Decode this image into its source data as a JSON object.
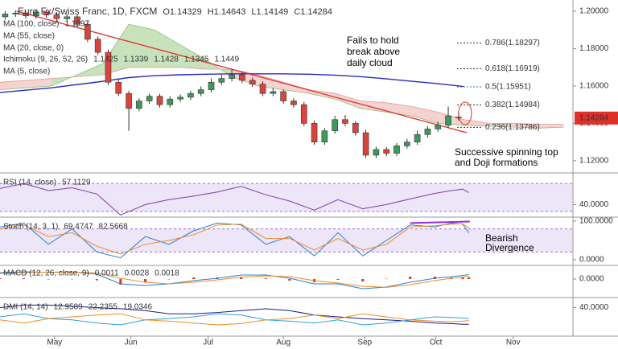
{
  "chart_data": [
    {
      "type": "candlestick",
      "title": "Euro Fx/Swiss Franc, 1D, FXCM",
      "legend_values": [
        "O1.14329",
        "H1.14643",
        "L1.14149",
        "C1.14284"
      ],
      "open": [
        1.197,
        1.1985,
        1.199,
        1.1975,
        1.1995,
        1.198,
        1.196,
        1.197,
        1.193,
        1.185,
        1.178,
        1.162,
        1.156,
        1.148,
        1.152,
        1.1545,
        1.15,
        1.153,
        1.154,
        1.156,
        1.158,
        1.162,
        1.164,
        1.166,
        1.163,
        1.161,
        1.156,
        1.157,
        1.152,
        1.15,
        1.14,
        1.13,
        1.136,
        1.142,
        1.14,
        1.135,
        1.123,
        1.126,
        1.124,
        1.128,
        1.13,
        1.134,
        1.137,
        1.139,
        1.14329
      ],
      "high": [
        1.2,
        1.2005,
        1.2002,
        1.201,
        1.2008,
        1.1995,
        1.1985,
        1.1982,
        1.1945,
        1.1865,
        1.1795,
        1.164,
        1.1575,
        1.1535,
        1.156,
        1.1558,
        1.1545,
        1.1555,
        1.1575,
        1.1598,
        1.164,
        1.166,
        1.169,
        1.1675,
        1.1645,
        1.1625,
        1.159,
        1.1582,
        1.1535,
        1.1515,
        1.1415,
        1.1375,
        1.144,
        1.1445,
        1.1412,
        1.1365,
        1.1275,
        1.1272,
        1.1295,
        1.1318,
        1.136,
        1.1385,
        1.141,
        1.149,
        1.14643
      ],
      "low": [
        1.1955,
        1.197,
        1.196,
        1.196,
        1.1965,
        1.1945,
        1.1945,
        1.1915,
        1.1835,
        1.1765,
        1.1605,
        1.1545,
        1.136,
        1.1465,
        1.1505,
        1.1485,
        1.1485,
        1.1515,
        1.1525,
        1.1545,
        1.1565,
        1.1605,
        1.1625,
        1.1615,
        1.1595,
        1.1545,
        1.1545,
        1.1505,
        1.1485,
        1.1385,
        1.1285,
        1.1285,
        1.1345,
        1.1385,
        1.1335,
        1.1215,
        1.1215,
        1.1225,
        1.1225,
        1.1265,
        1.1285,
        1.1325,
        1.1355,
        1.1375,
        1.14149
      ],
      "close": [
        1.1985,
        1.199,
        1.1975,
        1.1995,
        1.198,
        1.196,
        1.197,
        1.193,
        1.185,
        1.178,
        1.162,
        1.156,
        1.148,
        1.152,
        1.1545,
        1.15,
        1.153,
        1.154,
        1.156,
        1.158,
        1.162,
        1.164,
        1.166,
        1.163,
        1.161,
        1.156,
        1.157,
        1.152,
        1.15,
        1.14,
        1.13,
        1.136,
        1.142,
        1.14,
        1.135,
        1.123,
        1.126,
        1.124,
        1.128,
        1.13,
        1.134,
        1.137,
        1.139,
        1.144,
        1.14284
      ],
      "up_color": "#3d9a5a",
      "down_color": "#d8453c",
      "xlim": [
        0,
        55.6
      ],
      "xticks": [
        {
          "value": 5.3,
          "label": "May"
        },
        {
          "value": 12.7,
          "label": "Jun"
        },
        {
          "value": 20.2,
          "label": "Jul"
        },
        {
          "value": 27.5,
          "label": "Aug"
        },
        {
          "value": 35.4,
          "label": "Sep"
        },
        {
          "value": 42.3,
          "label": "Oct"
        },
        {
          "value": 49.8,
          "label": "Nov"
        }
      ],
      "ylim": [
        1.1135,
        1.206
      ],
      "yticks": [
        {
          "value": 1.2,
          "label": "1.20000"
        },
        {
          "value": 1.18,
          "label": "1.18000"
        },
        {
          "value": 1.16,
          "label": "1.16000"
        },
        {
          "value": 1.14,
          "label": "1.14000"
        },
        {
          "value": 1.12,
          "label": "1.12000"
        }
      ],
      "last_price_label": "1.14284",
      "last_price_color": "#e0302a",
      "overlays": [
        {
          "name": "MA (100, close)",
          "value_label": "1.1597",
          "color": "#2a2ac0",
          "x": [
            0,
            5,
            10,
            12.5,
            15,
            17.5,
            20,
            22.5,
            25,
            27.5,
            30,
            32.5,
            35,
            37.5,
            40,
            42.5,
            45
          ],
          "values": [
            1.1565,
            1.159,
            1.1625,
            1.1645,
            1.1655,
            1.166,
            1.1663,
            1.1665,
            1.1665,
            1.1665,
            1.1663,
            1.1658,
            1.165,
            1.1638,
            1.1625,
            1.1612,
            1.1597
          ]
        }
      ],
      "other_indicators": [
        "MA (55, close)",
        "MA (20, close, 0)",
        "MA (5, close)"
      ],
      "ichimoku": {
        "name": "Ichimoku (9, 26, 52, 26)",
        "value_labels": [
          "1.1425",
          "1.1339",
          "1.1428",
          "1.1345",
          "1.1449"
        ],
        "label_colors": [
          "#2a7fd0",
          "#c0392b",
          "#3d9a5a",
          "#2a7fd0",
          "#c0392b"
        ],
        "up_color": "#b6d9a6",
        "down_color": "#f2c4c0",
        "x": [
          0,
          5,
          10,
          12.5,
          15,
          17.5,
          20,
          22.5,
          25,
          27.5,
          30,
          32.5,
          35,
          37.5,
          40,
          42.5,
          45,
          47.5,
          50,
          52.5,
          54.7
        ],
        "span_a": [
          1.158,
          1.16,
          1.172,
          1.193,
          1.19,
          1.182,
          1.174,
          1.165,
          1.16,
          1.158,
          1.156,
          1.153,
          1.148,
          1.146,
          1.144,
          1.14,
          1.139,
          1.1385,
          1.138,
          1.1375,
          1.138
        ],
        "span_b": [
          1.162,
          1.164,
          1.166,
          1.17,
          1.17,
          1.17,
          1.169,
          1.169,
          1.166,
          1.162,
          1.158,
          1.156,
          1.152,
          1.151,
          1.149,
          1.146,
          1.142,
          1.14,
          1.14,
          1.1395,
          1.1395
        ]
      },
      "trendline": {
        "x": [
          1.6,
          45.3
        ],
        "values": [
          1.2,
          1.135
        ],
        "color": "#e0302a"
      },
      "fib_levels": [
        {
          "price": 1.18297,
          "label": "0.786(1.18297)",
          "color": "#333333"
        },
        {
          "price": 1.16919,
          "label": "0.618(1.16919)",
          "color": "#333333"
        },
        {
          "price": 1.15951,
          "label": "0.5(1.15951)",
          "color": "#3f63d0"
        },
        {
          "price": 1.14984,
          "label": "0.382(1.14984)",
          "color": "#333333"
        },
        {
          "price": 1.13786,
          "label": "0.236(1.13786)",
          "color": "#333333"
        }
      ],
      "annotations": [
        [
          "Fails to hold",
          "break above",
          "daily cloud"
        ],
        [
          "Successive spinning top",
          "and Doji formations"
        ]
      ]
    },
    {
      "type": "line",
      "title": "RSI (14, close)",
      "x": [
        0,
        2.3,
        4.7,
        7,
        9.4,
        11.7,
        14.1,
        16.4,
        18.8,
        21.1,
        23.4,
        25.8,
        28.1,
        30.5,
        32.8,
        35.2,
        37.5,
        39.8,
        42.2,
        43.8,
        44.9,
        45.5
      ],
      "series": [
        {
          "color": "#7e3fa8",
          "value_label": "57.1129",
          "values": [
            63,
            70,
            60,
            64,
            55,
            25,
            40,
            47,
            52,
            58,
            66,
            54,
            45,
            32,
            47,
            34,
            40,
            48,
            56,
            60,
            62,
            57.1129
          ]
        }
      ],
      "ylim": [
        22,
        85.3
      ],
      "yticks": [
        {
          "value": 40,
          "label": "40.0000"
        }
      ],
      "band": [
        30,
        70
      ]
    },
    {
      "type": "line",
      "title": "Stoch (14, 3, 1)",
      "x": [
        0,
        2.3,
        4.7,
        7,
        9.4,
        11.7,
        14.1,
        16.4,
        18.8,
        21.1,
        23.4,
        25.8,
        28.1,
        30.5,
        32.8,
        35.2,
        37.5,
        39.8,
        42.2,
        43.8,
        44.9,
        45.5
      ],
      "series": [
        {
          "color": "#2a7fd0",
          "value_label": "69.4747",
          "values": [
            85,
            95,
            40,
            80,
            20,
            5,
            60,
            40,
            75,
            95,
            90,
            40,
            60,
            10,
            70,
            10,
            50,
            90,
            85,
            95,
            92,
            69.4747
          ]
        },
        {
          "color": "#f08a24",
          "value_label": "82.5668",
          "values": [
            80,
            90,
            60,
            70,
            35,
            15,
            40,
            50,
            65,
            90,
            92,
            55,
            55,
            25,
            55,
            25,
            40,
            85,
            88,
            92,
            93,
            82.5668
          ]
        }
      ],
      "ylim": [
        -14.6,
        110.4
      ],
      "yticks": [
        {
          "value": 100,
          "label": "100.0000"
        },
        {
          "value": 0,
          "label": "0.0000"
        }
      ],
      "band": [
        20,
        80
      ],
      "divergence": {
        "x": [
          39.8,
          45.6
        ],
        "values": [
          95,
          99
        ],
        "color": "#9a2be0"
      },
      "annotation": [
        "Bearish",
        "Divergence"
      ]
    },
    {
      "type": "macd",
      "title": "MACD (12, 26, close, 9)",
      "x": [
        0,
        2.3,
        4.7,
        7,
        9.4,
        11.7,
        14.1,
        16.4,
        18.8,
        21.1,
        23.4,
        25.8,
        28.1,
        30.5,
        32.8,
        35.2,
        37.5,
        39.8,
        42.2,
        43.8,
        44.9,
        45.5
      ],
      "histogram": {
        "color": "#e0302a",
        "value_label": "0.0011",
        "values": [
          0.0005,
          0.0005,
          -0.0001,
          0.0001,
          -0.0008,
          -0.0035,
          -0.002,
          0,
          0.001,
          0.001,
          0.0013,
          0.0005,
          -0.001,
          -0.002,
          -0.0005,
          -0.0015,
          0.0002,
          0.0015,
          0.0015,
          0.001,
          0.001,
          0.0011
        ]
      },
      "series": [
        {
          "color": "#2a7fd0",
          "value_label": "0.0028",
          "values": [
            0.004,
            0.0045,
            0.0042,
            0.0044,
            0.003,
            -0.003,
            -0.004,
            -0.003,
            -0.001,
            0.0005,
            0.0025,
            0.0025,
            0.0005,
            -0.003,
            -0.003,
            -0.006,
            -0.005,
            -0.002,
            0.0005,
            0.0015,
            0.0022,
            0.0028
          ]
        },
        {
          "color": "#f08a24",
          "value_label": "0.0018",
          "values": [
            0.0035,
            0.004,
            0.0043,
            0.0043,
            0.0038,
            0.0005,
            -0.002,
            -0.003,
            -0.002,
            -0.0005,
            0.0012,
            0.002,
            0.0015,
            -0.001,
            -0.0025,
            -0.0045,
            -0.0052,
            -0.0035,
            -0.001,
            0.0005,
            0.0012,
            0.0018
          ]
        }
      ],
      "ylim": [
        -0.0115,
        0.0085
      ],
      "yticks": [
        {
          "value": 0,
          "label": "0.0000"
        }
      ]
    },
    {
      "type": "line",
      "title": "DMI (14, 14)",
      "x": [
        0,
        2.3,
        4.7,
        7,
        9.4,
        11.7,
        14.1,
        16.4,
        18.8,
        21.1,
        23.4,
        25.8,
        28.1,
        30.5,
        32.8,
        35.2,
        37.5,
        39.8,
        42.2,
        43.8,
        44.9,
        45.5
      ],
      "series": [
        {
          "color": "#1a1a8c",
          "value_label": "12.9589",
          "values": [
            40,
            44,
            44,
            42,
            40,
            38,
            35,
            30,
            30,
            32,
            35,
            38,
            35,
            28,
            25,
            22,
            20,
            18,
            15,
            14,
            13,
            12.9589
          ]
        },
        {
          "color": "#2a9fe0",
          "value_label": "22.2355",
          "values": [
            25,
            30,
            22,
            20,
            15,
            12,
            20,
            22,
            25,
            30,
            28,
            20,
            18,
            15,
            20,
            12,
            15,
            20,
            25,
            24,
            23,
            22.2355
          ]
        },
        {
          "color": "#f08a24",
          "value_label": "19.0346",
          "values": [
            20,
            15,
            22,
            25,
            28,
            30,
            20,
            18,
            15,
            12,
            14,
            20,
            22,
            28,
            22,
            30,
            25,
            20,
            18,
            17,
            18,
            19.0346
          ]
        }
      ],
      "ylim": [
        -6.25,
        56.25
      ],
      "yticks": [
        {
          "value": 40,
          "label": "40.0000"
        }
      ]
    }
  ]
}
